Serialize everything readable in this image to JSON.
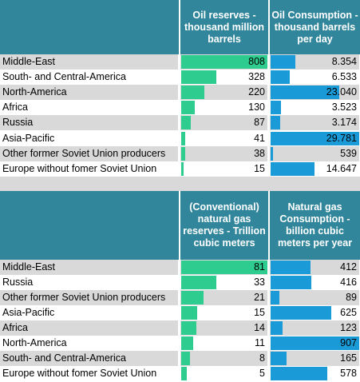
{
  "chart_data": [
    {
      "type": "table",
      "columns": [
        "",
        "Oil reserves - thousand million barrels",
        "Oil Consumption - thousand barrels per day"
      ],
      "rows": [
        {
          "label": "Middle-East",
          "v1": 808,
          "v1_text": "808",
          "v2": 8354,
          "v2_text": "8.354"
        },
        {
          "label": "South- and Central-America",
          "v1": 328,
          "v1_text": "328",
          "v2": 6533,
          "v2_text": "6.533"
        },
        {
          "label": "North-America",
          "v1": 220,
          "v1_text": "220",
          "v2": 23040,
          "v2_text": "23.040"
        },
        {
          "label": "Africa",
          "v1": 130,
          "v1_text": "130",
          "v2": 3523,
          "v2_text": "3.523"
        },
        {
          "label": "Russia",
          "v1": 87,
          "v1_text": "87",
          "v2": 3174,
          "v2_text": "3.174"
        },
        {
          "label": "Asia-Pacific",
          "v1": 41,
          "v1_text": "41",
          "v2": 29781,
          "v2_text": "29.781"
        },
        {
          "label": "Other former Soviet Union producers",
          "v1": 38,
          "v1_text": "38",
          "v2": 539,
          "v2_text": "539"
        },
        {
          "label": "Europe without fomer Soviet Union",
          "v1": 15,
          "v1_text": "15",
          "v2": 14647,
          "v2_text": "14.647"
        }
      ]
    },
    {
      "type": "table",
      "columns": [
        "",
        "(Conventional) natural gas reserves - Trillion cubic meters",
        "Natural gas Consumption - billion cubic meters per year"
      ],
      "rows": [
        {
          "label": "Middle-East",
          "v1": 81,
          "v1_text": "81",
          "v2": 412,
          "v2_text": "412"
        },
        {
          "label": "Russia",
          "v1": 33,
          "v1_text": "33",
          "v2": 416,
          "v2_text": "416"
        },
        {
          "label": "Other former Soviet Union producers",
          "v1": 21,
          "v1_text": "21",
          "v2": 89,
          "v2_text": "89"
        },
        {
          "label": "Asia-Pacific",
          "v1": 15,
          "v1_text": "15",
          "v2": 625,
          "v2_text": "625"
        },
        {
          "label": "Africa",
          "v1": 14,
          "v1_text": "14",
          "v2": 123,
          "v2_text": "123"
        },
        {
          "label": "North-America",
          "v1": 11,
          "v1_text": "11",
          "v2": 907,
          "v2_text": "907"
        },
        {
          "label": "South- and Central-America",
          "v1": 8,
          "v1_text": "8",
          "v2": 165,
          "v2_text": "165"
        },
        {
          "label": "Europe without fomer Soviet Union",
          "v1": 5,
          "v1_text": "5",
          "v2": 578,
          "v2_text": "578"
        }
      ]
    }
  ],
  "colors": {
    "header": "#31869b",
    "reserves_bar": "#2ecc8e",
    "consumption_bar": "#1a9ad7",
    "band": "#d9d9d9"
  }
}
